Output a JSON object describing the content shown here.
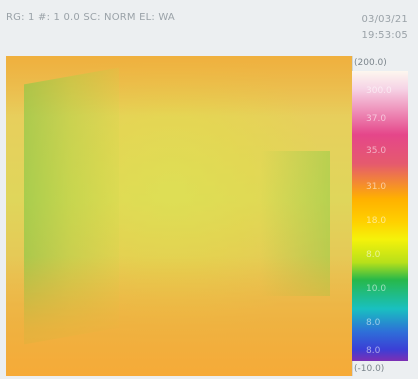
{
  "status": {
    "params": "RG: 1  #: 1  0.0   SC: NORM  EL: WA",
    "date": "03/03/21",
    "time": "19:53:05"
  },
  "scale": {
    "max_label": "(200.0)",
    "min_label": "(-10.0)",
    "ticks": [
      "300.0",
      "37.0",
      "35.0",
      "31.0",
      "18.0",
      "8.0",
      "10.0",
      "8.0",
      "8.0"
    ],
    "colors": [
      "#fdf7ef",
      "#e5468a",
      "#ffb000",
      "#f5f20a",
      "#27b84a",
      "#19c0c0",
      "#2e6ed8",
      "#7d2fb3"
    ]
  }
}
